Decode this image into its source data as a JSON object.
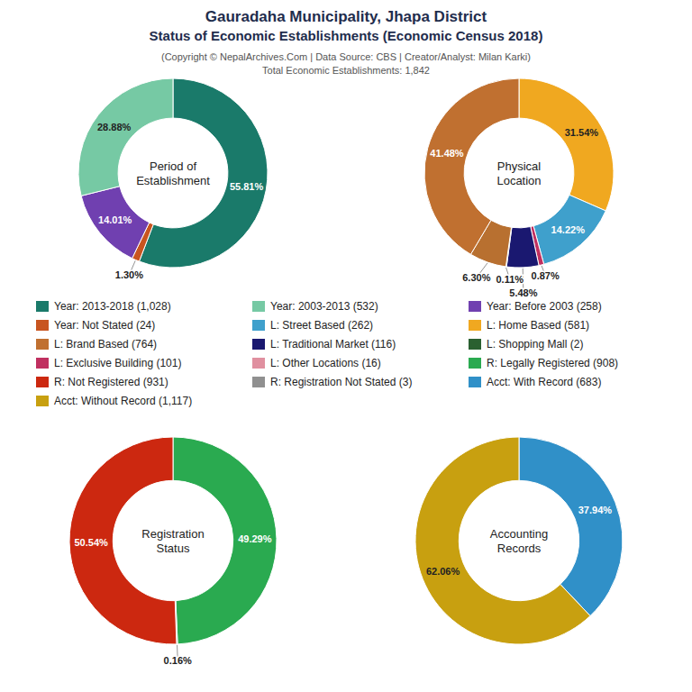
{
  "title": "Gauradaha Municipality, Jhapa District\nStatus of Economic Establishments (Economic Census 2018)",
  "subtitle": "(Copyright © NepalArchives.Com | Data Source: CBS | Creator/Analyst: Milan Karki)\nTotal Economic Establishments: 1,842",
  "legend_entries": [
    {
      "name": "Year: 2013-2018 (1,028)",
      "color": "#1a7a6a"
    },
    {
      "name": "Year: Not Stated (24)",
      "color": "#c85520"
    },
    {
      "name": "L: Brand Based (764)",
      "color": "#c07030"
    },
    {
      "name": "L: Exclusive Building (101)",
      "color": "#c03060"
    },
    {
      "name": "R: Not Registered (931)",
      "color": "#cc2810"
    },
    {
      "name": "Acct: Without Record (1,117)",
      "color": "#c8a010"
    },
    {
      "name": "Year: 2003-2013 (532)",
      "color": "#76c9a4"
    },
    {
      "name": "L: Street Based (262)",
      "color": "#3fa0cc"
    },
    {
      "name": "L: Traditional Market (116)",
      "color": "#1a1870"
    },
    {
      "name": "L: Other Locations (16)",
      "color": "#e090a0"
    },
    {
      "name": "R: Registration Not Stated (3)",
      "color": "#909090"
    },
    {
      "name": "Year: Before 2003 (258)",
      "color": "#7040b0"
    },
    {
      "name": "L: Home Based (581)",
      "color": "#f0a820"
    },
    {
      "name": "L: Shopping Mall (2)",
      "color": "#2a6030"
    },
    {
      "name": "R: Legally Registered (908)",
      "color": "#2aaa50"
    },
    {
      "name": "Acct: With Record (683)",
      "color": "#3090c8"
    }
  ],
  "chart_data": [
    {
      "type": "pie",
      "title": "Period of\nEstablishment",
      "values": [
        55.81,
        1.3,
        14.01,
        28.88
      ],
      "value_labels": [
        "55.81%",
        "1.30%",
        "14.01%",
        "28.88%"
      ],
      "colors": [
        "#1a7a6a",
        "#c85520",
        "#7040b0",
        "#76c9a4"
      ],
      "data_labels": true
    },
    {
      "type": "pie",
      "title": "Physical\nLocation",
      "values": [
        31.54,
        14.22,
        0.87,
        5.48,
        0.11,
        6.3,
        41.48
      ],
      "value_labels": [
        "31.54%",
        "14.22%",
        "0.87%",
        "5.48%",
        "0.11%",
        "6.30%",
        "41.48%"
      ],
      "colors": [
        "#f0a820",
        "#3fa0cc",
        "#c03060",
        "#1a1870",
        "#2a6030",
        "#b87030",
        "#c07030"
      ],
      "data_labels": true
    },
    {
      "type": "pie",
      "title": "Registration\nStatus",
      "values": [
        49.29,
        0.16,
        50.54
      ],
      "value_labels": [
        "49.29%",
        "0.16%",
        "50.54%"
      ],
      "colors": [
        "#2aaa50",
        "#909090",
        "#cc2810"
      ],
      "data_labels": true
    },
    {
      "type": "pie",
      "title": "Accounting\nRecords",
      "values": [
        37.94,
        62.06
      ],
      "value_labels": [
        "37.94%",
        "62.06%"
      ],
      "colors": [
        "#3090c8",
        "#c8a010"
      ],
      "data_labels": true
    }
  ]
}
